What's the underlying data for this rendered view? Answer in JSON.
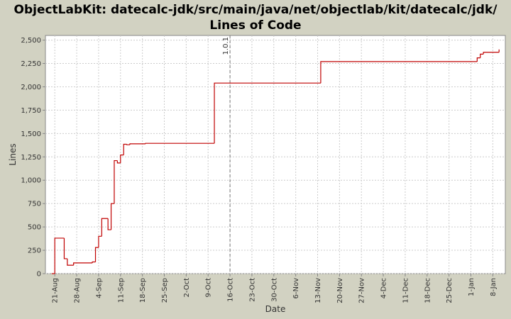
{
  "chart_data": {
    "type": "line",
    "step": "post",
    "title": "ObjectLabKit: datecalc-jdk/src/main/java/net/objectlab/kit/datecalc/jdk/ Lines of Code",
    "x_label": "Date",
    "y_label": "Lines",
    "x": [
      "20-Aug",
      "21-Aug",
      "24-Aug",
      "25-Aug",
      "27-Aug",
      "2-Sep",
      "3-Sep",
      "4-Sep",
      "5-Sep",
      "7-Sep",
      "8-Sep",
      "9-Sep",
      "10-Sep",
      "11-Sep",
      "12-Sep",
      "13-Sep",
      "14-Sep",
      "19-Sep",
      "11-Oct",
      "14-Nov",
      "3-Jan",
      "4-Jan",
      "5-Jan",
      "10-Jan"
    ],
    "values": [
      0,
      380,
      160,
      90,
      115,
      125,
      280,
      400,
      590,
      470,
      750,
      1210,
      1185,
      1270,
      1385,
      1380,
      1390,
      1395,
      2040,
      2270,
      2310,
      2350,
      2370,
      2400
    ],
    "color": "#c00000",
    "xlim": [
      "18-Aug",
      "12-Jan"
    ],
    "xticks": [
      "21-Aug",
      "28-Aug",
      "4-Sep",
      "11-Sep",
      "18-Sep",
      "25-Sep",
      "2-Oct",
      "9-Oct",
      "16-Oct",
      "23-Oct",
      "30-Oct",
      "6-Nov",
      "13-Nov",
      "20-Nov",
      "27-Nov",
      "4-Dec",
      "11-Dec",
      "18-Dec",
      "25-Dec",
      "1-Jan",
      "8-Jan"
    ],
    "ylim": [
      0,
      2550
    ],
    "yticks": [
      0,
      250,
      500,
      750,
      {
        "value": 1000,
        "label": "1,000"
      },
      {
        "value": 1250,
        "label": "1,250"
      },
      {
        "value": 1500,
        "label": "1,500"
      },
      {
        "value": 1750,
        "label": "1,750"
      },
      {
        "value": 2000,
        "label": "2,000"
      },
      {
        "value": 2250,
        "label": "2,250"
      },
      {
        "value": 2500,
        "label": "2,500"
      }
    ],
    "grid": true,
    "annotations": [
      {
        "x": "16-Oct",
        "label": "1.0.1"
      }
    ]
  }
}
